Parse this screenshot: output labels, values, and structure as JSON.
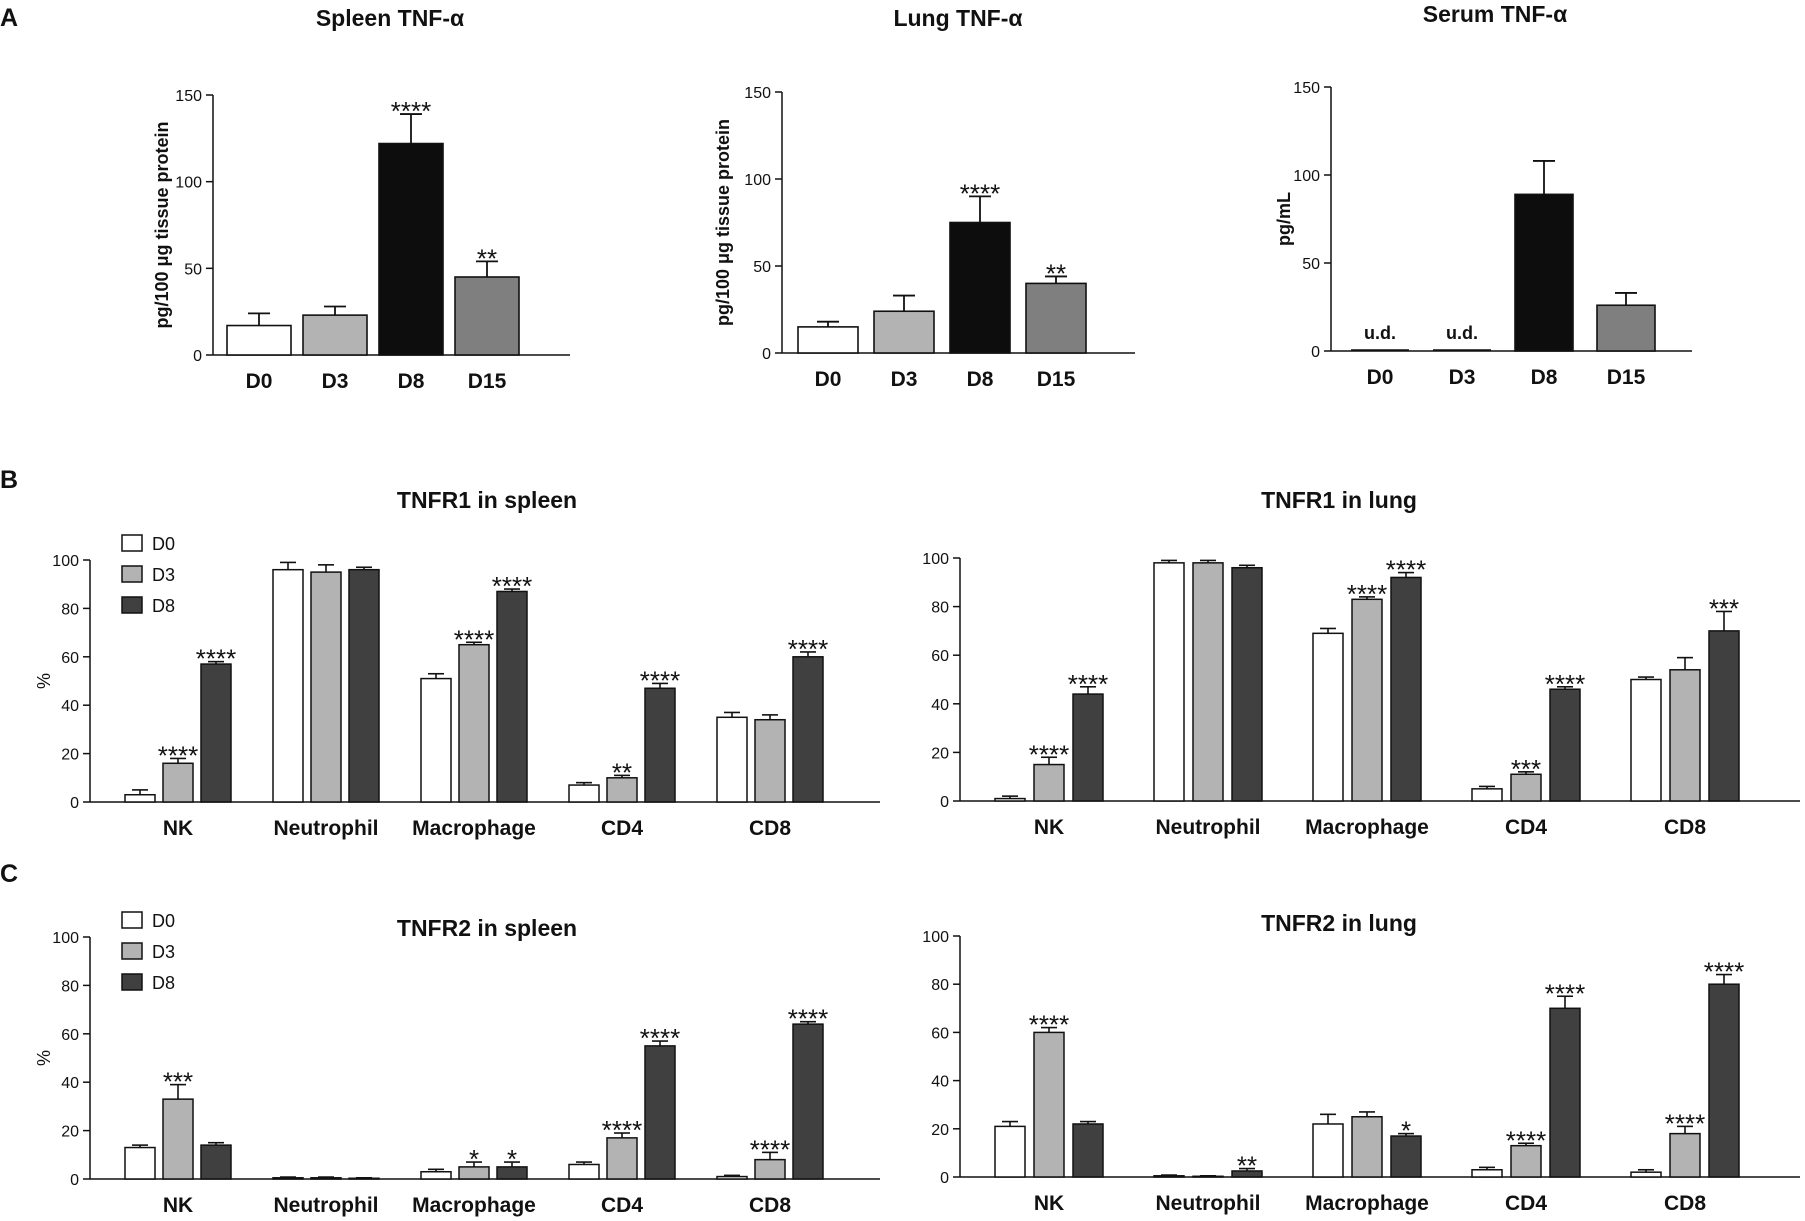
{
  "panel_labels": [
    "A",
    "B",
    "C"
  ],
  "colors": {
    "D0": "#ffffff",
    "D3": "#b3b3b3",
    "D8": "#404040",
    "D15": "#7f7f7f",
    "black": "#0d0d0d"
  },
  "chart_data": [
    {
      "id": "spleen-tnfa",
      "panel": "A",
      "type": "bar",
      "title": "Spleen TNF-α",
      "ylabel": "pg/100 μg tissue protein",
      "ylim": [
        0,
        150
      ],
      "yticks": [
        0,
        50,
        100,
        150
      ],
      "categories": [
        "D0",
        "D3",
        "D8",
        "D15"
      ],
      "values": [
        17,
        23,
        122,
        45
      ],
      "errors": [
        7,
        5,
        17,
        9
      ],
      "annotations": [
        "",
        "",
        "****",
        "**"
      ],
      "fills": [
        "#ffffff",
        "#b3b3b3",
        "#0d0d0d",
        "#7f7f7f"
      ]
    },
    {
      "id": "lung-tnfa",
      "panel": "A",
      "type": "bar",
      "title": "Lung TNF-α",
      "ylabel": "pg/100 μg tissue protein",
      "ylim": [
        0,
        150
      ],
      "yticks": [
        0,
        50,
        100,
        150
      ],
      "categories": [
        "D0",
        "D3",
        "D8",
        "D15"
      ],
      "values": [
        15,
        24,
        75,
        40
      ],
      "errors": [
        3,
        9,
        15,
        4
      ],
      "annotations": [
        "",
        "",
        "****",
        "**"
      ],
      "fills": [
        "#ffffff",
        "#b3b3b3",
        "#0d0d0d",
        "#7f7f7f"
      ]
    },
    {
      "id": "serum-tnfa",
      "panel": "A",
      "type": "bar",
      "title": "Serum TNF-α",
      "ylabel": "pg/mL",
      "ylim": [
        0,
        150
      ],
      "yticks": [
        0,
        50,
        100,
        150
      ],
      "categories": [
        "D0",
        "D3",
        "D8",
        "D15"
      ],
      "values": [
        0,
        0,
        89,
        26
      ],
      "errors": [
        0,
        0,
        19,
        7
      ],
      "annotations": [
        "u.d.",
        "u.d.",
        "",
        ""
      ],
      "fills": [
        "#ffffff",
        "#b3b3b3",
        "#0d0d0d",
        "#7f7f7f"
      ]
    },
    {
      "id": "tnfr1-spleen",
      "panel": "B",
      "type": "bar",
      "title": "TNFR1 in spleen",
      "ylabel": "%",
      "ylim": [
        0,
        100
      ],
      "yticks": [
        0,
        20,
        40,
        60,
        80,
        100
      ],
      "categories": [
        "NK",
        "Neutrophil",
        "Macrophage",
        "CD4",
        "CD8"
      ],
      "legend": [
        "D0",
        "D3",
        "D8"
      ],
      "series": [
        {
          "name": "D0",
          "values": [
            3,
            96,
            51,
            7,
            35
          ],
          "errors": [
            2,
            3,
            2,
            1,
            2
          ],
          "annotations": [
            "",
            "",
            "",
            "",
            ""
          ]
        },
        {
          "name": "D3",
          "values": [
            16,
            95,
            65,
            10,
            34
          ],
          "errors": [
            2,
            3,
            1,
            1,
            2
          ],
          "annotations": [
            "****",
            "",
            "****",
            "**",
            ""
          ]
        },
        {
          "name": "D8",
          "values": [
            57,
            96,
            87,
            47,
            60
          ],
          "errors": [
            1,
            1,
            1,
            2,
            2
          ],
          "annotations": [
            "****",
            "",
            "****",
            "****",
            "****"
          ]
        }
      ]
    },
    {
      "id": "tnfr1-lung",
      "panel": "B",
      "type": "bar",
      "title": "TNFR1 in lung",
      "ylabel": "",
      "ylim": [
        0,
        100
      ],
      "yticks": [
        0,
        20,
        40,
        60,
        80,
        100
      ],
      "categories": [
        "NK",
        "Neutrophil",
        "Macrophage",
        "CD4",
        "CD8"
      ],
      "legend": [],
      "series": [
        {
          "name": "D0",
          "values": [
            1,
            98,
            69,
            5,
            50
          ],
          "errors": [
            1,
            1,
            2,
            1,
            1
          ],
          "annotations": [
            "",
            "",
            "",
            "",
            ""
          ]
        },
        {
          "name": "D3",
          "values": [
            15,
            98,
            83,
            11,
            54
          ],
          "errors": [
            3,
            1,
            1,
            1,
            5
          ],
          "annotations": [
            "****",
            "",
            "****",
            "***",
            ""
          ]
        },
        {
          "name": "D8",
          "values": [
            44,
            96,
            92,
            46,
            70
          ],
          "errors": [
            3,
            1,
            2,
            1,
            8
          ],
          "annotations": [
            "****",
            "",
            "****",
            "****",
            "***"
          ]
        }
      ]
    },
    {
      "id": "tnfr2-spleen",
      "panel": "C",
      "type": "bar",
      "title": "TNFR2 in spleen",
      "ylabel": "%",
      "ylim": [
        0,
        100
      ],
      "yticks": [
        0,
        20,
        40,
        60,
        80,
        100
      ],
      "categories": [
        "NK",
        "Neutrophil",
        "Macrophage",
        "CD4",
        "CD8"
      ],
      "legend": [
        "D0",
        "D3",
        "D8"
      ],
      "series": [
        {
          "name": "D0",
          "values": [
            13,
            0.5,
            3,
            6,
            1
          ],
          "errors": [
            1,
            0.3,
            1,
            1,
            0.5
          ],
          "annotations": [
            "",
            "",
            "",
            "",
            ""
          ]
        },
        {
          "name": "D3",
          "values": [
            33,
            0.5,
            5,
            17,
            8
          ],
          "errors": [
            6,
            0.3,
            2,
            2,
            3
          ],
          "annotations": [
            "***",
            "",
            "*",
            "****",
            "****"
          ]
        },
        {
          "name": "D8",
          "values": [
            14,
            0.3,
            5,
            55,
            64
          ],
          "errors": [
            1,
            0.2,
            2,
            2,
            1
          ],
          "annotations": [
            "",
            "",
            "*",
            "****",
            "****"
          ]
        }
      ]
    },
    {
      "id": "tnfr2-lung",
      "panel": "C",
      "type": "bar",
      "title": "TNFR2 in lung",
      "ylabel": "",
      "ylim": [
        0,
        100
      ],
      "yticks": [
        0,
        20,
        40,
        60,
        80,
        100
      ],
      "categories": [
        "NK",
        "Neutrophil",
        "Macrophage",
        "CD4",
        "CD8"
      ],
      "legend": [],
      "series": [
        {
          "name": "D0",
          "values": [
            21,
            0.5,
            22,
            3,
            2
          ],
          "errors": [
            2,
            0.3,
            4,
            1,
            1
          ],
          "annotations": [
            "",
            "",
            "",
            "",
            ""
          ]
        },
        {
          "name": "D3",
          "values": [
            60,
            0.3,
            25,
            13,
            18
          ],
          "errors": [
            2,
            0.2,
            2,
            1,
            3
          ],
          "annotations": [
            "****",
            "",
            "",
            "****",
            "****"
          ]
        },
        {
          "name": "D8",
          "values": [
            22,
            2.5,
            17,
            70,
            80
          ],
          "errors": [
            1,
            1,
            1,
            5,
            4
          ],
          "annotations": [
            "",
            "**",
            "*",
            "****",
            "****"
          ]
        }
      ]
    }
  ]
}
